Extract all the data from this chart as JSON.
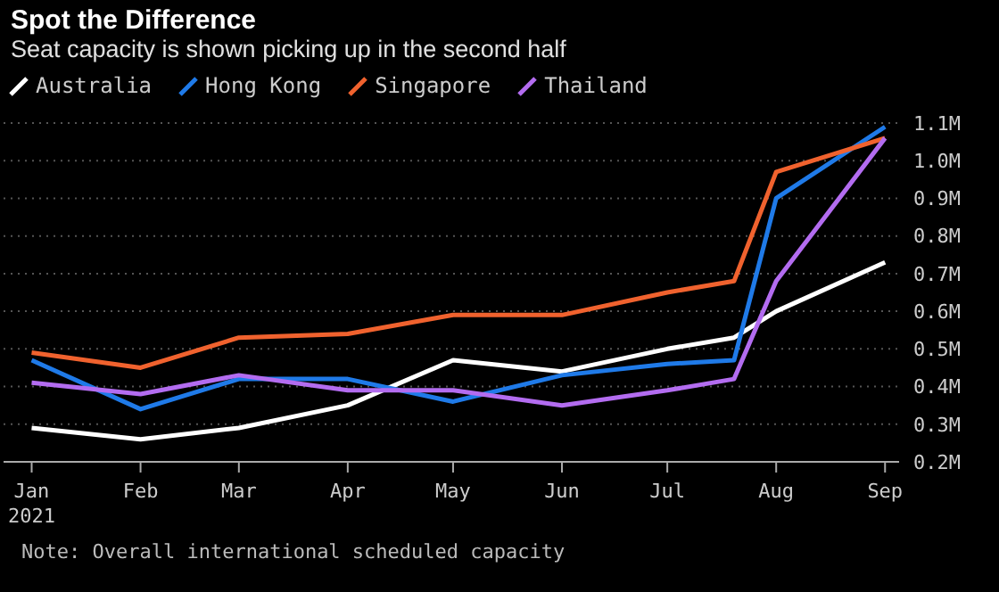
{
  "chart_data": {
    "type": "line",
    "title": "Spot the Difference",
    "subtitle": "Seat capacity is shown picking up in the second half",
    "x": [
      "2021-01-01",
      "2021-02-01",
      "2021-03-01",
      "2021-04-01",
      "2021-05-01",
      "2021-06-01",
      "2021-07-01",
      "2021-07-20",
      "2021-08-01",
      "2021-09-01"
    ],
    "series": [
      {
        "name": "Australia",
        "color": "#ffffff",
        "values": [
          0.29,
          0.26,
          0.29,
          0.35,
          0.47,
          0.44,
          0.5,
          0.53,
          0.6,
          0.73
        ]
      },
      {
        "name": "Hong Kong",
        "color": "#1f7ae8",
        "values": [
          0.47,
          0.34,
          0.42,
          0.42,
          0.36,
          0.43,
          0.46,
          0.47,
          0.9,
          1.09
        ]
      },
      {
        "name": "Singapore",
        "color": "#f0622e",
        "values": [
          0.49,
          0.45,
          0.53,
          0.54,
          0.59,
          0.59,
          0.65,
          0.68,
          0.97,
          1.06
        ]
      },
      {
        "name": "Thailand",
        "color": "#b36cf0",
        "values": [
          0.41,
          0.38,
          0.43,
          0.39,
          0.39,
          0.35,
          0.39,
          0.42,
          0.68,
          1.06
        ]
      }
    ],
    "xlim": [
      "2020-12-24",
      "2021-09-05"
    ],
    "xticks": [
      {
        "value": "2021-01-01",
        "label": "Jan\n2021"
      },
      {
        "value": "2021-02-01",
        "label": "Feb"
      },
      {
        "value": "2021-03-01",
        "label": "Mar"
      },
      {
        "value": "2021-04-01",
        "label": "Apr"
      },
      {
        "value": "2021-05-01",
        "label": "May"
      },
      {
        "value": "2021-06-01",
        "label": "Jun"
      },
      {
        "value": "2021-07-01",
        "label": "Jul"
      },
      {
        "value": "2021-08-01",
        "label": "Aug"
      },
      {
        "value": "2021-09-01",
        "label": "Sep"
      }
    ],
    "ylim": [
      0.2,
      1.1
    ],
    "yticks": [
      {
        "value": 0.2,
        "label": "0.2M"
      },
      {
        "value": 0.3,
        "label": "0.3M"
      },
      {
        "value": 0.4,
        "label": "0.4M"
      },
      {
        "value": 0.5,
        "label": "0.5M"
      },
      {
        "value": 0.6,
        "label": "0.6M"
      },
      {
        "value": 0.7,
        "label": "0.7M"
      },
      {
        "value": 0.8,
        "label": "0.8M"
      },
      {
        "value": 0.9,
        "label": "0.9M"
      },
      {
        "value": 1.0,
        "label": "1.0M"
      },
      {
        "value": 1.1,
        "label": "1.1M"
      }
    ],
    "grid": "y",
    "legend": "top left",
    "marker": "none",
    "line_style": "solid",
    "annotations": [
      "Note: Overall international scheduled capacity"
    ]
  }
}
